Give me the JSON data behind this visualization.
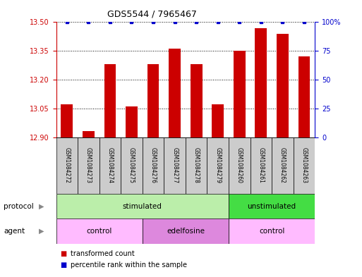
{
  "title": "GDS5544 / 7965467",
  "samples": [
    "GSM1084272",
    "GSM1084273",
    "GSM1084274",
    "GSM1084275",
    "GSM1084276",
    "GSM1084277",
    "GSM1084278",
    "GSM1084279",
    "GSM1084260",
    "GSM1084261",
    "GSM1084262",
    "GSM1084263"
  ],
  "transformed_counts": [
    13.07,
    12.93,
    13.28,
    13.06,
    13.28,
    13.36,
    13.28,
    13.07,
    13.35,
    13.47,
    13.44,
    13.32
  ],
  "percentile_ranks": [
    100,
    100,
    100,
    100,
    100,
    100,
    100,
    100,
    100,
    100,
    100,
    100
  ],
  "ylim_left": [
    12.9,
    13.5
  ],
  "ylim_right": [
    0,
    100
  ],
  "yticks_left": [
    12.9,
    13.05,
    13.2,
    13.35,
    13.5
  ],
  "yticks_right": [
    0,
    25,
    50,
    75,
    100
  ],
  "bar_color": "#cc0000",
  "dot_color": "#0000cc",
  "protocol_labels": [
    {
      "text": "stimulated",
      "start": 0,
      "end": 7,
      "color": "#bbeeaa"
    },
    {
      "text": "unstimulated",
      "start": 8,
      "end": 11,
      "color": "#44dd44"
    }
  ],
  "agent_labels": [
    {
      "text": "control",
      "start": 0,
      "end": 3,
      "color": "#ffbbff"
    },
    {
      "text": "edelfosine",
      "start": 4,
      "end": 7,
      "color": "#dd88dd"
    },
    {
      "text": "control",
      "start": 8,
      "end": 11,
      "color": "#ffbbff"
    }
  ],
  "legend_bar_color": "#cc0000",
  "legend_dot_color": "#0000cc",
  "legend_bar_label": "transformed count",
  "legend_dot_label": "percentile rank within the sample",
  "background_color": "#ffffff",
  "axis_color_left": "#cc0000",
  "axis_color_right": "#0000cc",
  "sample_box_color": "#cccccc",
  "title_fontsize": 9,
  "tick_fontsize": 7,
  "label_fontsize": 7.5,
  "legend_fontsize": 7
}
